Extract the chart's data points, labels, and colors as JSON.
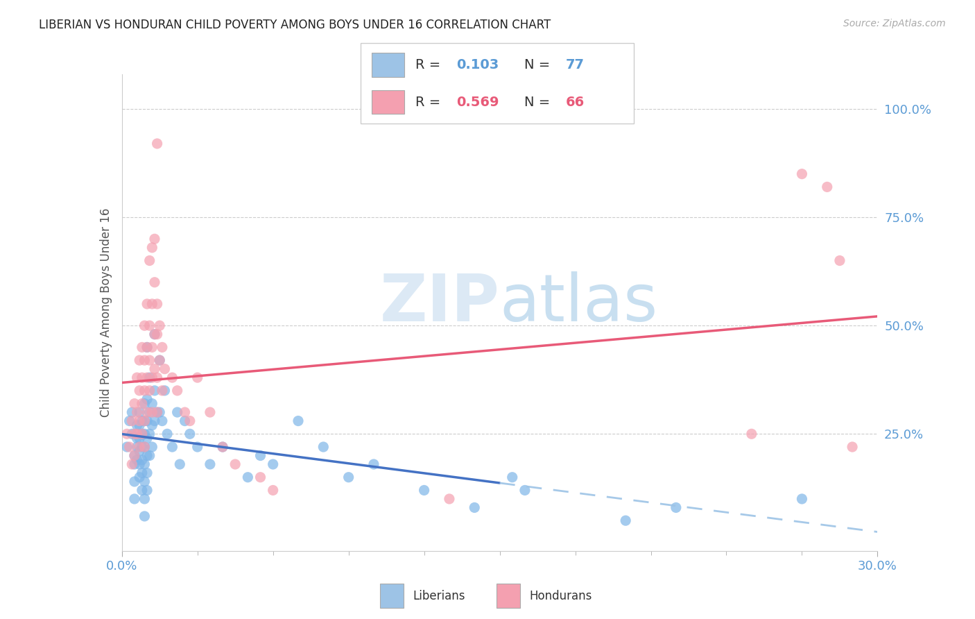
{
  "title": "LIBERIAN VS HONDURAN CHILD POVERTY AMONG BOYS UNDER 16 CORRELATION CHART",
  "source": "Source: ZipAtlas.com",
  "ylabel": "Child Poverty Among Boys Under 16",
  "xlim": [
    0.0,
    0.3
  ],
  "ylim": [
    -0.02,
    1.08
  ],
  "ytick_right_labels": [
    "25.0%",
    "50.0%",
    "75.0%",
    "100.0%"
  ],
  "ytick_right_values": [
    0.25,
    0.5,
    0.75,
    1.0
  ],
  "grid_color": "#cccccc",
  "background_color": "#ffffff",
  "liberian_color": "#7eb5e8",
  "honduran_color": "#f4a0b0",
  "liberian_line_color": "#4472c4",
  "honduran_line_color": "#e85a78",
  "liberian_dash_color": "#9dc3e6",
  "axis_label_color": "#5b9bd5",
  "watermark_zip": "ZIP",
  "watermark_atlas": "atlas",
  "watermark_color": "#d8e8f5",
  "legend_box_color_liberian": "#9dc3e6",
  "legend_box_color_honduran": "#f4a0b0",
  "liberian_scatter": [
    [
      0.002,
      0.22
    ],
    [
      0.003,
      0.28
    ],
    [
      0.004,
      0.3
    ],
    [
      0.004,
      0.25
    ],
    [
      0.005,
      0.2
    ],
    [
      0.005,
      0.18
    ],
    [
      0.005,
      0.14
    ],
    [
      0.005,
      0.1
    ],
    [
      0.006,
      0.27
    ],
    [
      0.006,
      0.24
    ],
    [
      0.006,
      0.22
    ],
    [
      0.006,
      0.19
    ],
    [
      0.007,
      0.3
    ],
    [
      0.007,
      0.27
    ],
    [
      0.007,
      0.24
    ],
    [
      0.007,
      0.21
    ],
    [
      0.007,
      0.18
    ],
    [
      0.007,
      0.15
    ],
    [
      0.008,
      0.28
    ],
    [
      0.008,
      0.25
    ],
    [
      0.008,
      0.22
    ],
    [
      0.008,
      0.19
    ],
    [
      0.008,
      0.16
    ],
    [
      0.008,
      0.12
    ],
    [
      0.009,
      0.32
    ],
    [
      0.009,
      0.28
    ],
    [
      0.009,
      0.25
    ],
    [
      0.009,
      0.22
    ],
    [
      0.009,
      0.18
    ],
    [
      0.009,
      0.14
    ],
    [
      0.009,
      0.1
    ],
    [
      0.009,
      0.06
    ],
    [
      0.01,
      0.45
    ],
    [
      0.01,
      0.33
    ],
    [
      0.01,
      0.28
    ],
    [
      0.01,
      0.24
    ],
    [
      0.01,
      0.2
    ],
    [
      0.01,
      0.16
    ],
    [
      0.01,
      0.12
    ],
    [
      0.011,
      0.38
    ],
    [
      0.011,
      0.3
    ],
    [
      0.011,
      0.25
    ],
    [
      0.011,
      0.2
    ],
    [
      0.012,
      0.32
    ],
    [
      0.012,
      0.27
    ],
    [
      0.012,
      0.22
    ],
    [
      0.013,
      0.48
    ],
    [
      0.013,
      0.35
    ],
    [
      0.013,
      0.28
    ],
    [
      0.014,
      0.3
    ],
    [
      0.015,
      0.42
    ],
    [
      0.015,
      0.3
    ],
    [
      0.016,
      0.28
    ],
    [
      0.017,
      0.35
    ],
    [
      0.018,
      0.25
    ],
    [
      0.02,
      0.22
    ],
    [
      0.022,
      0.3
    ],
    [
      0.023,
      0.18
    ],
    [
      0.025,
      0.28
    ],
    [
      0.027,
      0.25
    ],
    [
      0.03,
      0.22
    ],
    [
      0.035,
      0.18
    ],
    [
      0.04,
      0.22
    ],
    [
      0.05,
      0.15
    ],
    [
      0.055,
      0.2
    ],
    [
      0.06,
      0.18
    ],
    [
      0.07,
      0.28
    ],
    [
      0.08,
      0.22
    ],
    [
      0.09,
      0.15
    ],
    [
      0.1,
      0.18
    ],
    [
      0.12,
      0.12
    ],
    [
      0.14,
      0.08
    ],
    [
      0.155,
      0.15
    ],
    [
      0.16,
      0.12
    ],
    [
      0.2,
      0.05
    ],
    [
      0.22,
      0.08
    ],
    [
      0.27,
      0.1
    ]
  ],
  "honduran_scatter": [
    [
      0.002,
      0.25
    ],
    [
      0.003,
      0.22
    ],
    [
      0.004,
      0.28
    ],
    [
      0.004,
      0.18
    ],
    [
      0.005,
      0.32
    ],
    [
      0.005,
      0.25
    ],
    [
      0.005,
      0.2
    ],
    [
      0.006,
      0.38
    ],
    [
      0.006,
      0.3
    ],
    [
      0.006,
      0.25
    ],
    [
      0.007,
      0.42
    ],
    [
      0.007,
      0.35
    ],
    [
      0.007,
      0.28
    ],
    [
      0.007,
      0.22
    ],
    [
      0.008,
      0.45
    ],
    [
      0.008,
      0.38
    ],
    [
      0.008,
      0.32
    ],
    [
      0.008,
      0.25
    ],
    [
      0.009,
      0.5
    ],
    [
      0.009,
      0.42
    ],
    [
      0.009,
      0.35
    ],
    [
      0.009,
      0.28
    ],
    [
      0.009,
      0.22
    ],
    [
      0.01,
      0.55
    ],
    [
      0.01,
      0.45
    ],
    [
      0.01,
      0.38
    ],
    [
      0.01,
      0.3
    ],
    [
      0.011,
      0.65
    ],
    [
      0.011,
      0.5
    ],
    [
      0.011,
      0.42
    ],
    [
      0.011,
      0.35
    ],
    [
      0.012,
      0.68
    ],
    [
      0.012,
      0.55
    ],
    [
      0.012,
      0.45
    ],
    [
      0.012,
      0.38
    ],
    [
      0.012,
      0.3
    ],
    [
      0.013,
      0.7
    ],
    [
      0.013,
      0.6
    ],
    [
      0.013,
      0.48
    ],
    [
      0.013,
      0.4
    ],
    [
      0.014,
      0.92
    ],
    [
      0.014,
      0.55
    ],
    [
      0.014,
      0.48
    ],
    [
      0.014,
      0.38
    ],
    [
      0.014,
      0.3
    ],
    [
      0.015,
      0.5
    ],
    [
      0.015,
      0.42
    ],
    [
      0.016,
      0.45
    ],
    [
      0.016,
      0.35
    ],
    [
      0.017,
      0.4
    ],
    [
      0.02,
      0.38
    ],
    [
      0.022,
      0.35
    ],
    [
      0.025,
      0.3
    ],
    [
      0.027,
      0.28
    ],
    [
      0.03,
      0.38
    ],
    [
      0.035,
      0.3
    ],
    [
      0.04,
      0.22
    ],
    [
      0.045,
      0.18
    ],
    [
      0.055,
      0.15
    ],
    [
      0.06,
      0.12
    ],
    [
      0.13,
      0.1
    ],
    [
      0.25,
      0.25
    ],
    [
      0.27,
      0.85
    ],
    [
      0.28,
      0.82
    ],
    [
      0.285,
      0.65
    ],
    [
      0.29,
      0.22
    ]
  ]
}
